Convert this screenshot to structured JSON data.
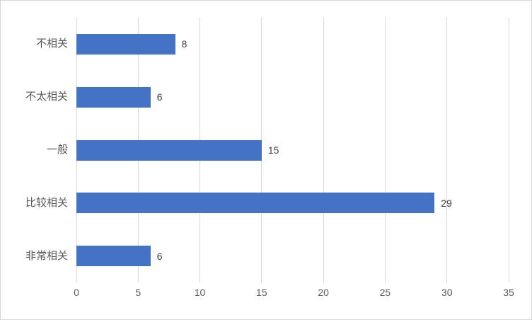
{
  "chart_data": {
    "type": "bar",
    "orientation": "horizontal",
    "title": "",
    "xlabel": "",
    "ylabel": "",
    "categories": [
      "不相关",
      "不太相关",
      "一般",
      "比较相关",
      "非常相关"
    ],
    "values": [
      8,
      6,
      15,
      29,
      6
    ],
    "data_labels": [
      "8",
      "6",
      "15",
      "29",
      "6"
    ],
    "xlim": [
      0,
      35
    ],
    "xticks": [
      0,
      5,
      10,
      15,
      20,
      25,
      30,
      35
    ],
    "xtick_labels": [
      "0",
      "5",
      "10",
      "15",
      "20",
      "25",
      "30",
      "35"
    ],
    "grid": true,
    "legend": "none",
    "colors": {
      "bar_fill": "#4472c4",
      "gridline": "#d9d9d9",
      "axis_text": "#595959",
      "data_label_text": "#404040",
      "chart_border": "#d6d6d6",
      "background": "#ffffff"
    }
  }
}
